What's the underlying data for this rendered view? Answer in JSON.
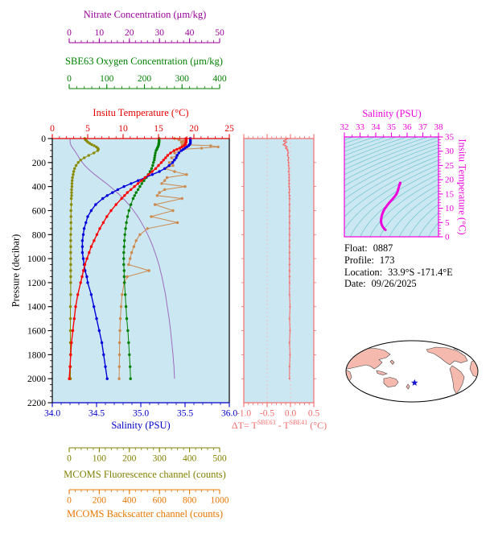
{
  "colors": {
    "background": "#ffffff",
    "plot_bg": "#cbe7f1",
    "contour": "#6cc6cf",
    "dt_grid": "#f5b8b8",
    "land": "#f5b9ad",
    "land_outline": "#444444",
    "map_outline": "#000000",
    "star": "#1414cc",
    "frame": "#000000"
  },
  "axes": {
    "nitrate": {
      "title": "Nitrate Concentration (μm/kg)",
      "ticks": [
        "0",
        "10",
        "20",
        "30",
        "40",
        "50"
      ],
      "lim": [
        0,
        50
      ],
      "minor": 2,
      "color": "#990099"
    },
    "oxygen": {
      "title": "SBE63 Oxygen Concentration (μm/kg)",
      "ticks": [
        "0",
        "100",
        "200",
        "300",
        "400"
      ],
      "lim": [
        0,
        400
      ],
      "minor": 20,
      "color": "#008000"
    },
    "temperature": {
      "title": "Insitu Temperature (°C)",
      "ticks": [
        "0",
        "5",
        "10",
        "15",
        "20",
        "25"
      ],
      "lim": [
        0,
        25
      ],
      "minor": 1,
      "color": "#e60000"
    },
    "pressure": {
      "title": "Pressure (decibar)",
      "ticks": [
        "0",
        "200",
        "400",
        "600",
        "800",
        "1000",
        "1200",
        "1400",
        "1600",
        "1800",
        "2000",
        "2200"
      ],
      "lim": [
        0,
        2200
      ],
      "minor": 50,
      "color": "#000000"
    },
    "salinity": {
      "title": "Salinity (PSU)",
      "ticks": [
        "34.0",
        "34.5",
        "35.0",
        "35.5",
        "36.0"
      ],
      "lim": [
        34,
        36
      ],
      "minor": 0.1,
      "color": "#0000cc"
    },
    "fluorescence": {
      "title": "MCOMS Fluorescence channel (counts)",
      "ticks": [
        "0",
        "100",
        "200",
        "300",
        "400",
        "500"
      ],
      "lim": [
        0,
        500
      ],
      "minor": 20,
      "color": "#808000"
    },
    "backscatter": {
      "title": "MCOMS Backscatter channel (counts)",
      "ticks": [
        "0",
        "200",
        "400",
        "600",
        "800",
        "1000"
      ],
      "lim": [
        0,
        1000
      ],
      "minor": 40,
      "color": "#e87600"
    },
    "delta_t": {
      "title_pre": "ΔT= T",
      "title_sup1": "SBE63",
      "title_mid": " - T",
      "title_sup2": "SBE41",
      "title_post": " (°C)",
      "ticks": [
        "-1.0",
        "-0.5",
        "0.0",
        "0.5"
      ],
      "lim": [
        -1,
        0.5
      ],
      "minor": 0.1,
      "color": "#f26d6d"
    },
    "ts_salinity": {
      "title": "Salinity (PSU)",
      "ticks": [
        "32",
        "33",
        "34",
        "35",
        "36",
        "37",
        "38"
      ],
      "lim": [
        32,
        38
      ],
      "minor": 0.5,
      "color": "#ee00dd"
    },
    "ts_temperature": {
      "title": "Insitu Temperature (°C)",
      "ticks": [
        "0",
        "5",
        "10",
        "15",
        "20",
        "25",
        "30",
        "35"
      ],
      "lim": [
        0,
        35
      ],
      "minor": 1,
      "color": "#ee00dd"
    }
  },
  "info": {
    "float_label": "Float:",
    "float_value": "0887",
    "profile_label": "Profile:",
    "profile_value": "173",
    "location_label": "Location:",
    "location_value": "33.9°S -171.4°E",
    "date_label": "Date:",
    "date_value": "09/26/2025"
  },
  "chart_data": [
    {
      "id": "profile-plot",
      "type": "line",
      "ylabel": "Pressure (decibar)",
      "ylim": [
        0,
        2200
      ],
      "pressure": [
        0,
        10,
        20,
        30,
        40,
        50,
        60,
        70,
        80,
        90,
        100,
        120,
        140,
        160,
        180,
        200,
        225,
        250,
        275,
        300,
        325,
        350,
        375,
        400,
        425,
        450,
        475,
        500,
        550,
        600,
        650,
        700,
        750,
        800,
        850,
        900,
        950,
        1000,
        1050,
        1100,
        1150,
        1200,
        1300,
        1400,
        1500,
        1600,
        1700,
        1800,
        1900,
        2000
      ],
      "series": [
        {
          "name": "nitrate",
          "axis": "nitrate",
          "color": "#9e6bbe",
          "width": 1,
          "marker": false,
          "values": [
            0.3,
            0.3,
            0.3,
            0.3,
            0.4,
            0.5,
            0.7,
            0.9,
            1.2,
            1.5,
            1.8,
            2.3,
            2.8,
            3.3,
            3.8,
            4.4,
            5.2,
            6.2,
            7.3,
            8.5,
            9.8,
            11.1,
            12.4,
            13.6,
            14.8,
            15.9,
            17.0,
            18.0,
            19.8,
            21.4,
            22.8,
            24.0,
            25.1,
            26.1,
            27.0,
            27.8,
            28.5,
            29.2,
            29.8,
            30.3,
            30.8,
            31.2,
            32.0,
            32.6,
            33.2,
            33.7,
            34.1,
            34.5,
            34.8,
            35.0
          ]
        },
        {
          "name": "backscatter",
          "axis": "backscatter",
          "color": "#cd8a4f",
          "width": 1,
          "marker": true,
          "values": [
            700,
            730,
            760,
            745,
            770,
            750,
            940,
            990,
            880,
            760,
            740,
            700,
            720,
            680,
            700,
            665,
            690,
            640,
            700,
            780,
            650,
            635,
            615,
            770,
            635,
            600,
            585,
            750,
            570,
            690,
            545,
            720,
            520,
            470,
            445,
            430,
            415,
            405,
            395,
            530,
            385,
            365,
            352,
            345,
            340,
            337,
            335,
            334,
            333,
            332
          ]
        },
        {
          "name": "fluorescence",
          "axis": "fluorescence",
          "color": "#8a8a00",
          "width": 1,
          "marker": true,
          "values": [
            52,
            54,
            58,
            62,
            68,
            75,
            83,
            90,
            95,
            97,
            95,
            82,
            65,
            50,
            38,
            30,
            23,
            18,
            15,
            13,
            11,
            10,
            9,
            9,
            8,
            8,
            8,
            7,
            7,
            6,
            6,
            6,
            6,
            5,
            5,
            5,
            5,
            5,
            5,
            5,
            5,
            5,
            5,
            4,
            4,
            4,
            4,
            4,
            4,
            4
          ]
        },
        {
          "name": "oxygen",
          "axis": "oxygen",
          "color": "#008000",
          "width": 1,
          "marker": true,
          "values": [
            239,
            239,
            239,
            239,
            238,
            238,
            237,
            236,
            234,
            233,
            231,
            229,
            228,
            227,
            226,
            224,
            222,
            219,
            215,
            210,
            205,
            199,
            193,
            188,
            183,
            178,
            174,
            170,
            164,
            159,
            155,
            152,
            150,
            148,
            147,
            146,
            145,
            145,
            145,
            146,
            146,
            147,
            149,
            151,
            153,
            156,
            158,
            160,
            162,
            163
          ]
        },
        {
          "name": "salinity",
          "axis": "salinity",
          "color": "#0000dd",
          "width": 1.4,
          "marker": true,
          "values": [
            35.56,
            35.56,
            35.56,
            35.56,
            35.56,
            35.55,
            35.54,
            35.52,
            35.5,
            35.48,
            35.46,
            35.43,
            35.41,
            35.4,
            35.38,
            35.36,
            35.32,
            35.27,
            35.21,
            35.13,
            35.05,
            34.97,
            34.89,
            34.81,
            34.74,
            34.68,
            34.62,
            34.57,
            34.49,
            34.44,
            34.4,
            34.38,
            34.36,
            34.35,
            34.34,
            34.34,
            34.34,
            34.35,
            34.36,
            34.37,
            34.39,
            34.4,
            34.44,
            34.47,
            34.5,
            34.53,
            34.56,
            34.58,
            34.6,
            34.62
          ]
        },
        {
          "name": "temperature",
          "axis": "temperature",
          "color": "#ff0000",
          "width": 1.4,
          "marker": true,
          "values": [
            18.9,
            18.9,
            18.9,
            18.9,
            18.8,
            18.8,
            18.6,
            18.3,
            18.0,
            17.6,
            17.2,
            16.7,
            16.3,
            16.0,
            15.7,
            15.4,
            15.0,
            14.6,
            14.1,
            13.6,
            13.1,
            12.6,
            12.1,
            11.6,
            11.1,
            10.6,
            10.2,
            9.8,
            9.0,
            8.3,
            7.7,
            7.2,
            6.7,
            6.3,
            5.9,
            5.5,
            5.2,
            4.9,
            4.6,
            4.4,
            4.2,
            4.0,
            3.6,
            3.3,
            3.1,
            2.9,
            2.7,
            2.6,
            2.5,
            2.4
          ]
        }
      ]
    },
    {
      "id": "temperature-difference-plot",
      "type": "line",
      "xlabel": "ΔT = T^SBE63 - T^SBE41 (°C)",
      "xlim": [
        -1,
        0.5
      ],
      "pressure_grid": "same as profile-plot",
      "color": "#f26d6d",
      "values": [
        -0.06,
        -0.1,
        -0.14,
        -0.09,
        -0.12,
        -0.15,
        -0.11,
        -0.08,
        -0.1,
        -0.07,
        -0.06,
        -0.05,
        -0.06,
        -0.04,
        -0.05,
        -0.04,
        -0.04,
        -0.03,
        -0.04,
        -0.03,
        -0.03,
        -0.03,
        -0.03,
        -0.03,
        -0.02,
        -0.03,
        -0.02,
        -0.02,
        -0.02,
        -0.02,
        -0.02,
        -0.02,
        -0.02,
        -0.02,
        -0.02,
        -0.02,
        -0.02,
        -0.02,
        -0.02,
        -0.02,
        -0.02,
        -0.02,
        -0.02,
        -0.01,
        -0.02,
        -0.01,
        -0.02,
        -0.01,
        -0.02,
        -0.02
      ]
    },
    {
      "id": "ts-diagram",
      "type": "line",
      "xlabel": "Salinity (PSU)",
      "ylabel": "Insitu Temperature (°C)",
      "xlim": [
        32,
        38
      ],
      "ylim": [
        0,
        35
      ],
      "curve": "salinity vs temperature series from profile-plot",
      "sigma_contours": {
        "min": 18,
        "max": 30,
        "step": 0.5
      },
      "color": "#ee00dd"
    },
    {
      "id": "location-map",
      "type": "map",
      "star": {
        "lat": -33.9,
        "lon_e": 188.6
      }
    }
  ]
}
